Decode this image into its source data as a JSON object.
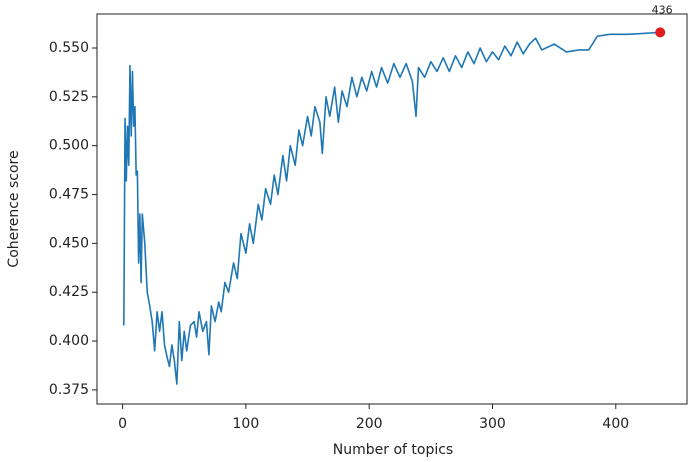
{
  "chart_data": {
    "type": "line",
    "x_label": "Number of topics",
    "y_label": "Coherence score",
    "color": "#1f77b4",
    "x": [
      1,
      2,
      3,
      4,
      5,
      6,
      7,
      8,
      9,
      10,
      11,
      12,
      13,
      14,
      15,
      16,
      18,
      20,
      22,
      24,
      26,
      28,
      30,
      32,
      34,
      36,
      38,
      40,
      42,
      44,
      46,
      48,
      50,
      52,
      55,
      58,
      60,
      62,
      65,
      68,
      70,
      72,
      75,
      78,
      80,
      83,
      86,
      90,
      93,
      96,
      100,
      103,
      106,
      110,
      113,
      116,
      120,
      123,
      126,
      130,
      133,
      136,
      140,
      143,
      146,
      150,
      153,
      156,
      160,
      162,
      165,
      168,
      172,
      175,
      178,
      182,
      186,
      190,
      194,
      198,
      202,
      206,
      210,
      215,
      220,
      225,
      230,
      235,
      238,
      240,
      245,
      250,
      255,
      260,
      265,
      270,
      275,
      280,
      285,
      290,
      295,
      300,
      305,
      310,
      315,
      320,
      325,
      330,
      335,
      340,
      350,
      360,
      370,
      378,
      385,
      395,
      410,
      436
    ],
    "values": [
      0.408,
      0.514,
      0.482,
      0.51,
      0.49,
      0.541,
      0.505,
      0.538,
      0.51,
      0.52,
      0.485,
      0.487,
      0.44,
      0.465,
      0.43,
      0.465,
      0.45,
      0.425,
      0.418,
      0.41,
      0.395,
      0.415,
      0.405,
      0.415,
      0.398,
      0.392,
      0.387,
      0.398,
      0.39,
      0.378,
      0.41,
      0.39,
      0.405,
      0.395,
      0.408,
      0.41,
      0.402,
      0.415,
      0.405,
      0.41,
      0.393,
      0.418,
      0.41,
      0.42,
      0.415,
      0.43,
      0.425,
      0.44,
      0.432,
      0.455,
      0.445,
      0.46,
      0.45,
      0.47,
      0.462,
      0.478,
      0.47,
      0.485,
      0.475,
      0.495,
      0.482,
      0.5,
      0.49,
      0.508,
      0.5,
      0.515,
      0.505,
      0.52,
      0.512,
      0.496,
      0.525,
      0.515,
      0.53,
      0.512,
      0.528,
      0.52,
      0.535,
      0.525,
      0.535,
      0.528,
      0.538,
      0.53,
      0.54,
      0.532,
      0.542,
      0.535,
      0.542,
      0.533,
      0.515,
      0.54,
      0.535,
      0.543,
      0.538,
      0.545,
      0.538,
      0.546,
      0.54,
      0.548,
      0.542,
      0.55,
      0.543,
      0.548,
      0.544,
      0.551,
      0.546,
      0.553,
      0.547,
      0.552,
      0.555,
      0.549,
      0.552,
      0.548,
      0.549,
      0.549,
      0.556,
      0.557,
      0.557,
      0.558
    ],
    "highlight": {
      "x": 436,
      "y": 0.558,
      "label": "436",
      "color": "#e41a1c"
    },
    "xlim": [
      -20.75,
      457.75
    ],
    "ylim": [
      0.3678,
      0.5674
    ],
    "xticks": [
      0,
      100,
      200,
      300,
      400
    ],
    "yticks": [
      0.375,
      {
        "value": 0.4,
        "label": "0.400"
      },
      0.425,
      {
        "value": 0.45,
        "label": "0.450"
      },
      0.475,
      {
        "value": 0.5,
        "label": "0.500"
      },
      0.525,
      {
        "value": 0.55,
        "label": "0.550"
      }
    ]
  }
}
